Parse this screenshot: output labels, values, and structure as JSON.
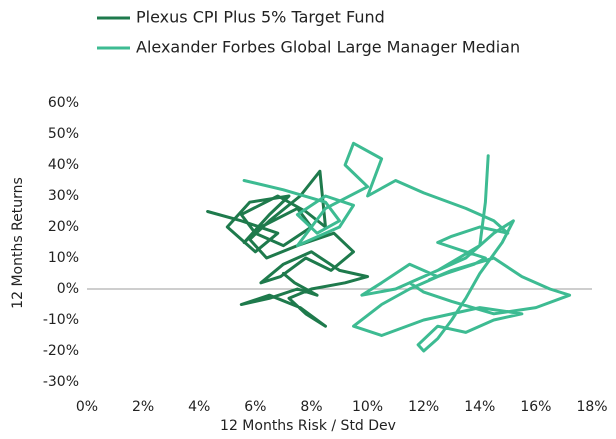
{
  "chart_data": {
    "type": "line",
    "xlabel": "12 Months Risk / Std Dev",
    "ylabel": "12 Months Returns",
    "xlim": [
      0,
      18
    ],
    "ylim": [
      -30,
      60
    ],
    "xticks": [
      {
        "value": 0,
        "label": "0%"
      },
      {
        "value": 2,
        "label": "2%"
      },
      {
        "value": 4,
        "label": "4%"
      },
      {
        "value": 6,
        "label": "6%"
      },
      {
        "value": 8,
        "label": "8%"
      },
      {
        "value": 10,
        "label": "10%"
      },
      {
        "value": 12,
        "label": "12%"
      },
      {
        "value": 14,
        "label": "14%"
      },
      {
        "value": 16,
        "label": "16%"
      },
      {
        "value": 18,
        "label": "18%"
      }
    ],
    "yticks": [
      {
        "value": -30,
        "label": "-30%"
      },
      {
        "value": -20,
        "label": "-20%"
      },
      {
        "value": -10,
        "label": "-10%"
      },
      {
        "value": 0,
        "label": "0%"
      },
      {
        "value": 10,
        "label": "10%"
      },
      {
        "value": 20,
        "label": "20%"
      },
      {
        "value": 30,
        "label": "30%"
      },
      {
        "value": 40,
        "label": "40%"
      },
      {
        "value": 50,
        "label": "50%"
      },
      {
        "value": 60,
        "label": "60%"
      }
    ],
    "series": [
      {
        "name": "Plexus CPI Plus 5% Target Fund",
        "color": "#1e7a4c",
        "x": [
          4.3,
          5.5,
          6.8,
          6.0,
          5.0,
          5.8,
          7.2,
          6.5,
          5.6,
          6.2,
          7.5,
          8.0,
          7.0,
          6.0,
          5.5,
          6.8,
          7.8,
          8.5,
          8.3,
          7.6,
          6.5,
          5.8,
          6.4,
          7.5,
          8.8,
          9.5,
          8.7,
          7.8,
          6.9,
          6.2,
          7.0,
          8.0,
          9.0,
          10.0,
          9.2,
          8.0,
          7.2,
          7.8,
          8.5,
          7.6,
          6.5,
          5.5,
          6.5,
          7.5,
          8.2,
          7.4,
          7.0
        ],
        "values": [
          25,
          22,
          18,
          12,
          20,
          28,
          30,
          24,
          15,
          20,
          26,
          20,
          14,
          18,
          24,
          30,
          25,
          20,
          38,
          30,
          22,
          16,
          10,
          14,
          18,
          12,
          6,
          10,
          4,
          2,
          8,
          12,
          6,
          4,
          2,
          0,
          -3,
          -8,
          -12,
          -6,
          -2,
          -5,
          -3,
          0,
          -2,
          2,
          5
        ]
      },
      {
        "name": "Alexander Forbes Global Large Manager Median",
        "color": "#3dbb92",
        "x": [
          5.6,
          7.0,
          8.5,
          9.0,
          8.2,
          7.5,
          8.5,
          9.5,
          9.0,
          8.0,
          7.5,
          8.5,
          10.0,
          9.2,
          9.5,
          10.5,
          10.0,
          11.0,
          12.0,
          13.5,
          14.5,
          15.0,
          14.0,
          13.0,
          12.5,
          13.5,
          14.2,
          13.8,
          12.8,
          12.2,
          13.0,
          14.5,
          15.5,
          16.5,
          17.2,
          16.0,
          14.5,
          13.0,
          12.0,
          11.5,
          12.5,
          13.5,
          14.0,
          14.5,
          15.2,
          14.8,
          14.0,
          13.5,
          13.0,
          12.5,
          12.0,
          11.8,
          12.5,
          13.5,
          14.5,
          15.5,
          14.0,
          12.0,
          10.5,
          9.5,
          10.5,
          11.5,
          12.5,
          11.5,
          10.5,
          9.8,
          11.0,
          12.5,
          14.0,
          14.2,
          14.3
        ],
        "values": [
          35,
          32,
          28,
          22,
          18,
          24,
          30,
          27,
          20,
          16,
          14,
          26,
          33,
          40,
          47,
          42,
          30,
          35,
          31,
          26,
          22,
          18,
          20,
          17,
          15,
          12,
          10,
          8,
          5,
          3,
          6,
          10,
          4,
          0,
          -2,
          -6,
          -8,
          -4,
          -1,
          2,
          6,
          10,
          14,
          18,
          22,
          15,
          5,
          -3,
          -10,
          -16,
          -20,
          -18,
          -12,
          -14,
          -10,
          -8,
          -6,
          -10,
          -15,
          -12,
          -5,
          0,
          4,
          8,
          2,
          -2,
          0,
          6,
          14,
          28,
          43
        ]
      }
    ]
  }
}
